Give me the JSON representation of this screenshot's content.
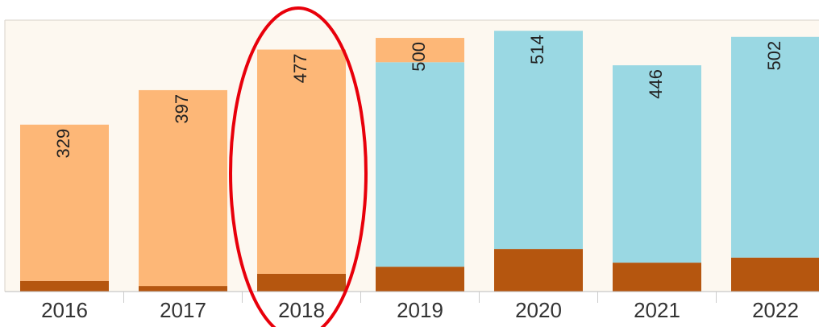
{
  "chart_data": {
    "type": "stacked-bar",
    "categories": [
      "2016",
      "2017",
      "2018",
      "2019",
      "2020",
      "2021",
      "2022"
    ],
    "series": [
      {
        "color": "#b5560f",
        "values": [
          21,
          11,
          35,
          49,
          84,
          57,
          67
        ]
      },
      {
        "color": "#9ad8e3",
        "values": [
          0,
          0,
          0,
          403,
          430,
          389,
          435
        ]
      },
      {
        "color": "#fdb777",
        "values": [
          308,
          386,
          442,
          48,
          0,
          0,
          0
        ]
      }
    ],
    "totals": [
      329,
      397,
      477,
      500,
      514,
      446,
      502
    ],
    "ylim": [
      0,
      535
    ]
  }
}
